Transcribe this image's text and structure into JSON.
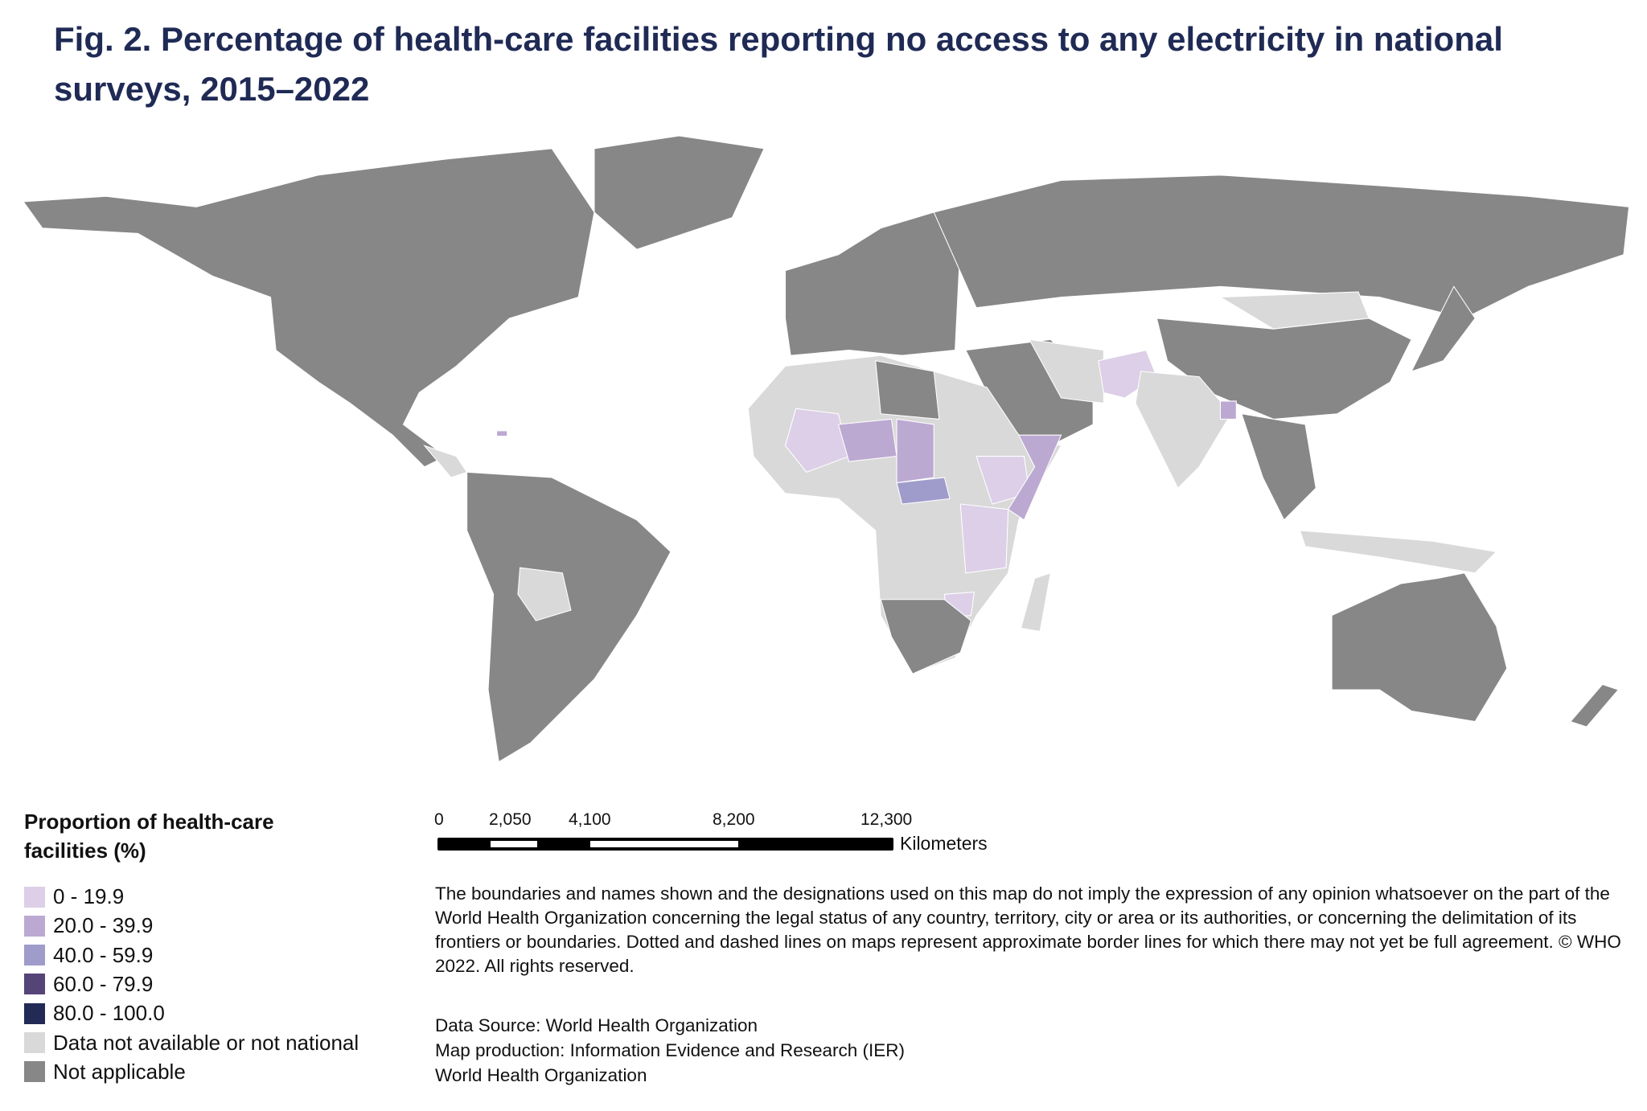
{
  "title": "Fig. 2. Percentage of health-care facilities reporting no access to any electricity in national surveys, 2015–2022",
  "legend": {
    "title": "Proportion of health-care facilities (%)",
    "items": [
      {
        "label": "0 - 19.9",
        "color": "#dccfe7"
      },
      {
        "label": "20.0 - 39.9",
        "color": "#bca9d2"
      },
      {
        "label": "40.0 - 59.9",
        "color": "#9f9ccb"
      },
      {
        "label": "60.0 - 79.9",
        "color": "#554478"
      },
      {
        "label": "80.0 - 100.0",
        "color": "#222a56"
      },
      {
        "label": "Data not available or not national",
        "color": "#d9d9d9"
      },
      {
        "label": "Not applicable",
        "color": "#878787"
      }
    ]
  },
  "scale_bar": {
    "ticks": [
      "0",
      "2,050",
      "4,100",
      "8,200",
      "12,300"
    ],
    "unit": "Kilometers"
  },
  "disclaimer": "The boundaries and names shown and the designations used on this map do not imply the expression of any opinion whatsoever on the part of the World Health Organization concerning the legal status of any country, territory, city or area or its authorities, or concerning the delimitation of its frontiers or boundaries. Dotted and dashed lines on maps represent approximate border lines for which there may not yet be full agreement. © WHO 2022. All rights reserved.",
  "source_lines": [
    "Data Source: World Health Organization",
    "Map production: Information Evidence and Research (IER)",
    "World Health Organization"
  ],
  "title_color": "#1f2a55"
}
